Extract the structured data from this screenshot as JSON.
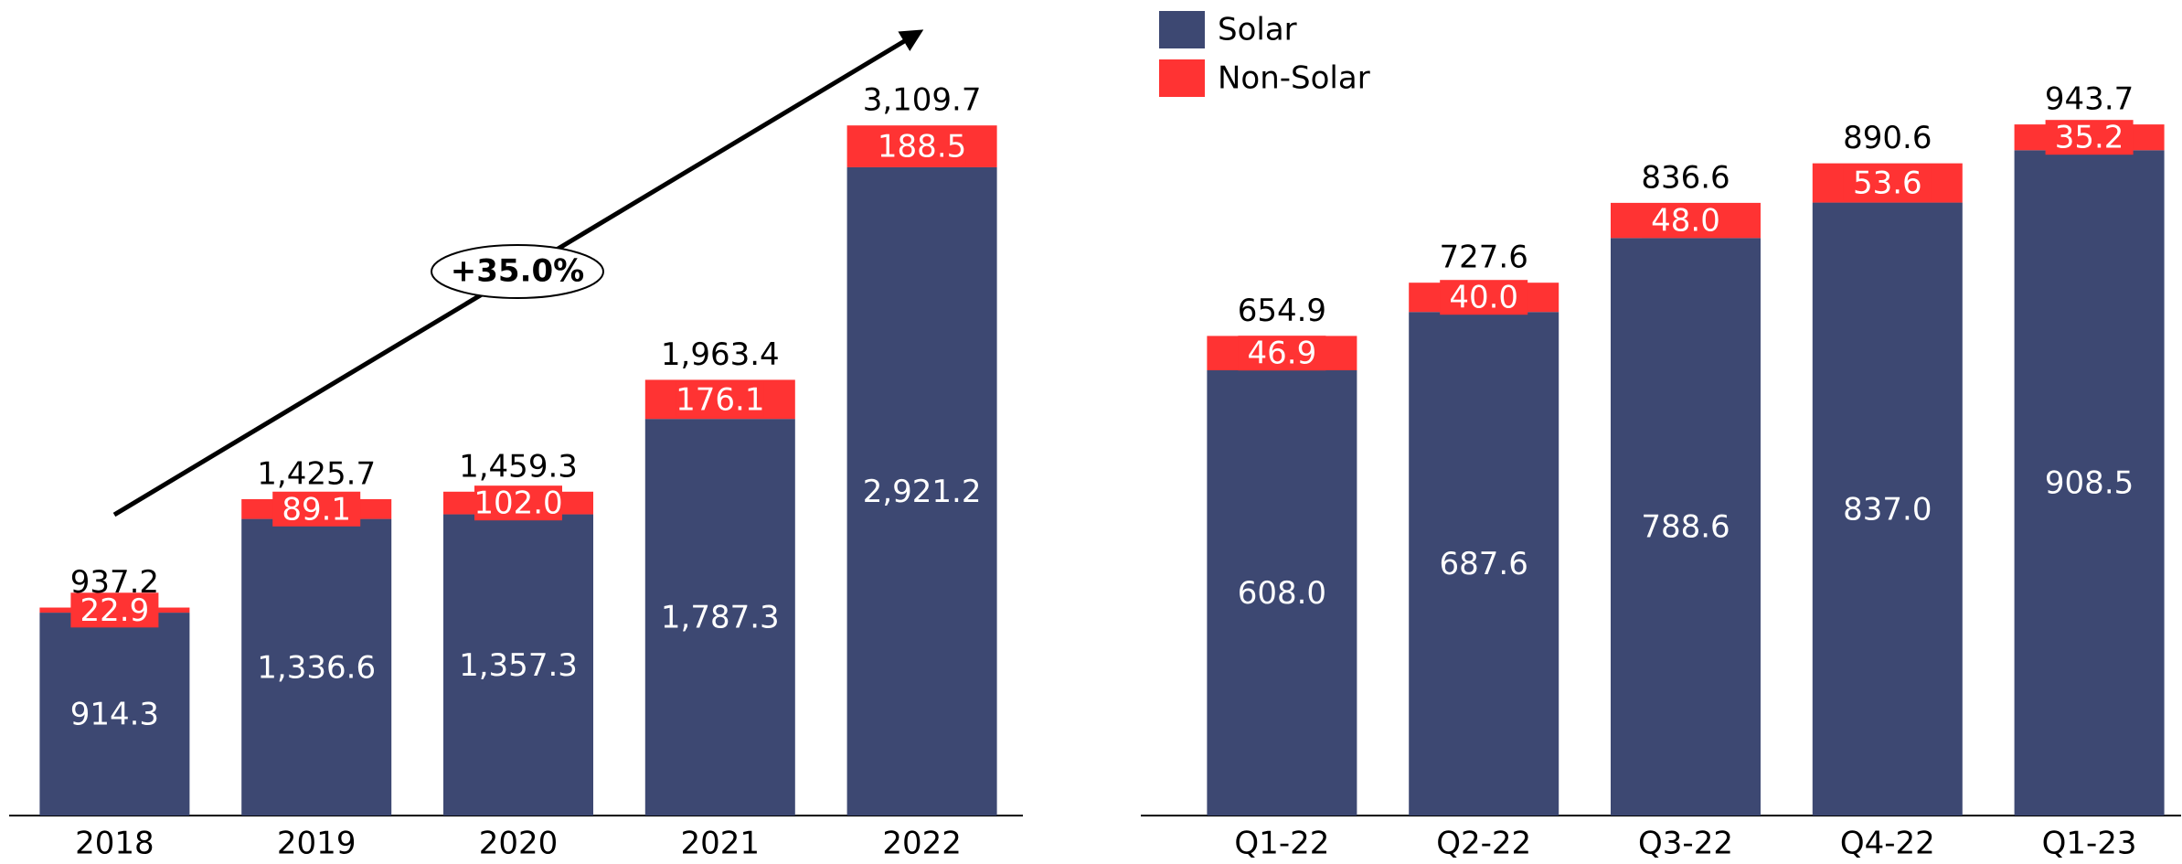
{
  "chart_data": [
    {
      "type": "stacked_bar",
      "annotation": "+35.0%",
      "categories": [
        "2018",
        "2019",
        "2020",
        "2021",
        "2022"
      ],
      "series": [
        {
          "name": "Solar",
          "color": "#3d4872",
          "values": [
            914.3,
            1336.6,
            1357.3,
            1787.3,
            2921.2
          ],
          "value_labels": [
            "914.3",
            "1,336.6",
            "1,357.3",
            "1,787.3",
            "2,921.2"
          ]
        },
        {
          "name": "Non-Solar",
          "color": "#ff3333",
          "values": [
            22.9,
            89.1,
            102.0,
            176.1,
            188.5
          ],
          "value_labels": [
            "22.9",
            "89.1",
            "102.0",
            "176.1",
            "188.5"
          ]
        }
      ],
      "totals": [
        937.2,
        1425.7,
        1459.3,
        1963.4,
        3109.7
      ],
      "total_labels": [
        "937.2",
        "1,425.7",
        "1,459.3",
        "1,963.4",
        "3,109.7"
      ],
      "ylim": [
        0,
        3300
      ]
    },
    {
      "type": "stacked_bar",
      "legend": "top-left",
      "categories": [
        "Q1-22",
        "Q2-22",
        "Q3-22",
        "Q4-22",
        "Q1-23"
      ],
      "series": [
        {
          "name": "Solar",
          "color": "#3d4872",
          "values": [
            608.0,
            687.6,
            788.6,
            837.0,
            908.5
          ],
          "value_labels": [
            "608.0",
            "687.6",
            "788.6",
            "837.0",
            "908.5"
          ]
        },
        {
          "name": "Non-Solar",
          "color": "#ff3333",
          "values": [
            46.9,
            40.0,
            48.0,
            53.6,
            35.2
          ],
          "value_labels": [
            "46.9",
            "40.0",
            "48.0",
            "53.6",
            "35.2"
          ]
        }
      ],
      "totals": [
        654.9,
        727.6,
        836.6,
        890.6,
        943.7
      ],
      "total_labels": [
        "654.9",
        "727.6",
        "836.6",
        "890.6",
        "943.7"
      ],
      "ylim": [
        0,
        1000
      ]
    }
  ]
}
